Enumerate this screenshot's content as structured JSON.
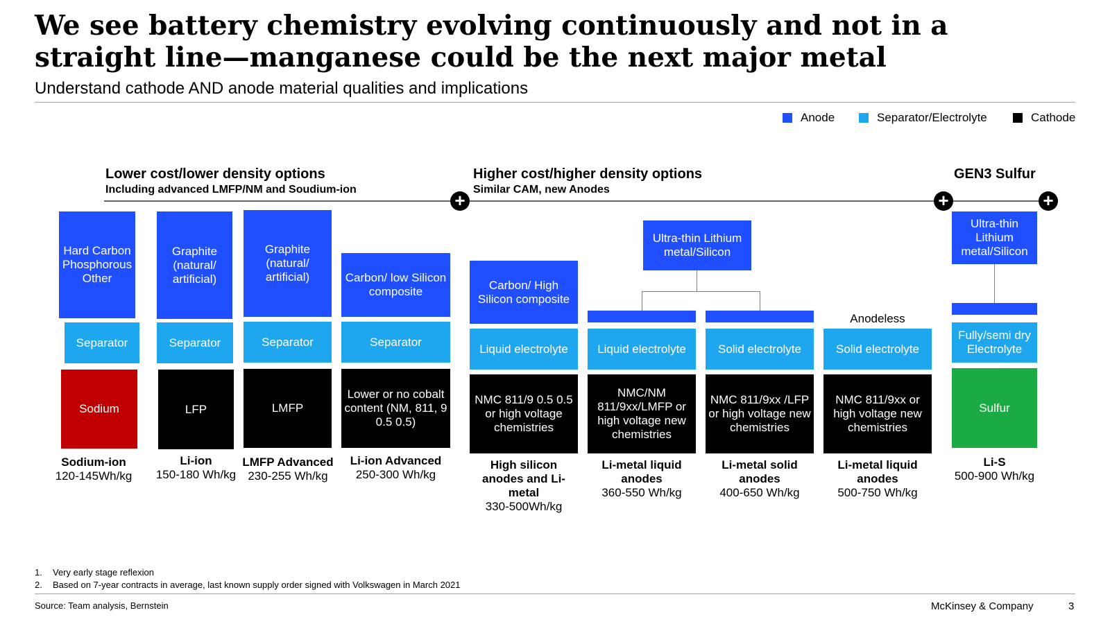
{
  "title": "We see battery chemistry evolving continuously and not in a straight line—manganese could be the next major metal",
  "subtitle": "Understand cathode AND anode material qualities and implications",
  "legend": [
    {
      "label": "Anode",
      "color": "#1f4fff"
    },
    {
      "label": "Separator/Electrolyte",
      "color": "#1ea7ef"
    },
    {
      "label": "Cathode",
      "color": "#000000"
    }
  ],
  "groups": {
    "lower": {
      "title": "Lower cost/lower density options",
      "sub": "Including advanced LMFP/NM and Soudium-ion"
    },
    "higher": {
      "title": "Higher cost/higher density options",
      "sub": "Similar CAM, new Anodes"
    },
    "gen3": {
      "title": "GEN3 Sulfur"
    }
  },
  "columns": [
    {
      "anode": "Hard Carbon Phosphorous Other",
      "separator": "Separator",
      "cathode": "Sodium",
      "name": "Sodium-ion",
      "density": "120-145Wh/kg"
    },
    {
      "anode": "Graphite (natural/ artificial)",
      "separator": "Separator",
      "cathode": "LFP",
      "name": "Li-ion",
      "density": "150-180 Wh/kg"
    },
    {
      "anode": "Graphite (natural/ artificial)",
      "separator": "Separator",
      "cathode": "LMFP",
      "name": "LMFP Advanced",
      "density": "230-255 Wh/kg"
    },
    {
      "anode": "Carbon/ low Silicon composite",
      "separator": "Separator",
      "cathode": "Lower or no cobalt content (NM, 811, 9 0.5 0.5)",
      "name": "Li-ion Advanced",
      "density": "250-300 Wh/kg"
    },
    {
      "anode": "Carbon/ High Silicon composite",
      "separator": "Liquid electrolyte",
      "cathode": "NMC 811/9 0.5 0.5 or high voltage chemistries",
      "name": "High silicon anodes and Li-metal",
      "density": "330-500Wh/kg"
    },
    {
      "anode": "",
      "separator": "Liquid electrolyte",
      "cathode": "NMC/NM 811/9xx/LMFP or high voltage new chemistries",
      "name": "Li-metal liquid anodes",
      "density": "360-550 Wh/kg"
    },
    {
      "anode": "",
      "separator": "Solid electrolyte",
      "cathode": "NMC 811/9xx /LFP or high voltage new chemistries",
      "name": "Li-metal solid anodes",
      "density": "400-650 Wh/kg"
    },
    {
      "anode": "Anodeless",
      "separator": "Solid electrolyte",
      "cathode": "NMC 811/9xx or high voltage new chemistries",
      "name": "Li-metal liquid anodes",
      "density": "500-750 Wh/kg"
    },
    {
      "anode": "Ultra-thin Lithium metal/Silicon",
      "separator": "Fully/semi dry Electrolyte",
      "cathode": "Sulfur",
      "name": "Li-S",
      "density": "500-900 Wh/kg"
    }
  ],
  "shared_anode": "Ultra-thin Lithium metal/Silicon",
  "footnotes": [
    "Very early stage reflexion",
    "Based on 7-year contracts in average, last known supply order signed with Volkswagen in March 2021"
  ],
  "source": "Source: Team analysis, Bernstein",
  "company": "McKinsey & Company",
  "page_number": "3"
}
